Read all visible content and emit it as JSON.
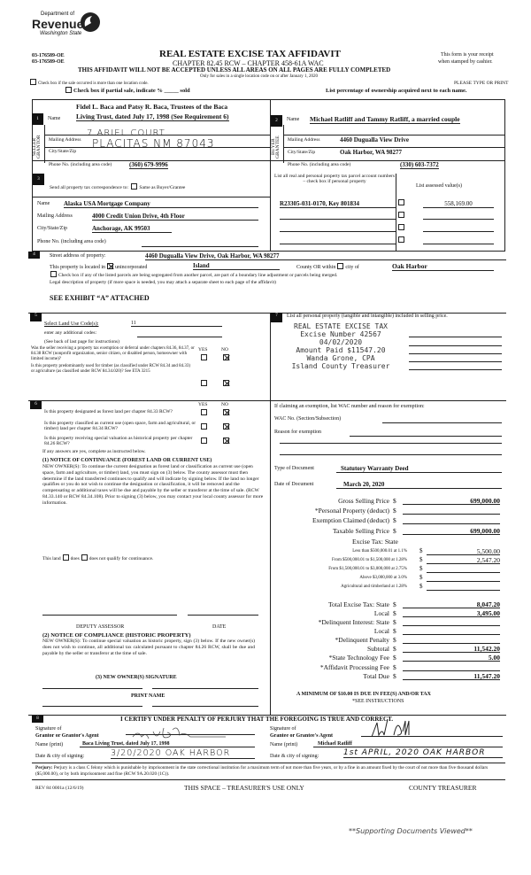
{
  "header": {
    "logo_line1": "Department of",
    "logo_line2": "Revenue",
    "logo_line3": "Washington State",
    "ids": [
      "03-176589-OE",
      "03-176589-OE"
    ],
    "title": "REAL ESTATE EXCISE TAX AFFIDAVIT",
    "chapter": "CHAPTER 82.45 RCW – CHAPTER 458-61A WAC",
    "receipt1": "This form is your receipt",
    "receipt2": "when stamped by cashier.",
    "warning": "THIS AFFIDAVIT WILL NOT BE ACCEPTED UNLESS ALL AREAS ON ALL PAGES ARE FULLY COMPLETED",
    "only_sales": "Only for sales in a single location code on or after January 1, 2020",
    "multi_location": "Check box if the sale occurred is more than one location code.",
    "type_print": "PLEASE TYPE OR PRINT",
    "partial_sale": "Check box if partial sale, indicate % _____ sold",
    "list_pct": "List percentage of ownership acquired next to each name."
  },
  "seller": {
    "num": "1",
    "side": "SELLER GRANTOR",
    "name_label": "Name",
    "name_line1": "Fidel L. Baca and Patsy R. Baca, Trustees of the Baca",
    "name_line2": "Living Trust, dated July 17, 1998 (See Requirement 6)",
    "mail_label": "Mailing Address",
    "mail": "7 ARIEL COURT",
    "city_label": "City/State/Zip",
    "city": "PLACITAS NM 87043",
    "phone_label": "Phone No. (including area code)",
    "phone": "(360) 679-9996"
  },
  "buyer": {
    "num": "2",
    "side": "BUYER GRANTEE",
    "name_label": "Name",
    "name": "Michael Ratliff and Tammy Ratliff, a married couple",
    "mail_label": "Mailing Address",
    "mail": "4460 Dugualla View Drive",
    "city_label": "City/State/Zip",
    "city": "Oak Harbor, WA 98277",
    "phone_label": "Phone No. (including area code)",
    "phone": "(330) 603-7372"
  },
  "section3": {
    "num": "3",
    "send_label": "Send all property tax correspondence to:",
    "same_label": "Same as Buyer/Grantee",
    "name_label": "Name",
    "name": "Alaska USA Mortgage Company",
    "mail_label": "Mailing Address",
    "mail": "4000 Credit Union Drive, 4th Floor",
    "city_label": "City/State/Zip",
    "city": "Anchorage, AK 99503",
    "phone_label": "Phone No. (including area code)",
    "parcel_header": "List all real and personal property tax parcel account numbers – check box if personal property",
    "assessed_header": "List assessed value(s)",
    "parcel": "R23305-031-0170, Key 801834",
    "assessed": "558,169.00"
  },
  "section4": {
    "num": "4",
    "street_label": "Street address of property:",
    "street": "4460 Dugualla View Drive, Oak Harbor, WA  98277",
    "located_label": "This property is located in",
    "unincorporated": "unincorporated",
    "county": "Island",
    "county_or": "County OR within",
    "city_of": "city of",
    "city": "Oak Harbor",
    "segregated": "Check box if any of the listed parcels are being segregated from another parcel, are part of a boundary line adjustment or parcels being merged.",
    "legal": "Legal description of property (if more space is needed, you may attach a separate sheet to each page of the affidavit)",
    "exhibit": "SEE EXHIBIT “A” ATTACHED"
  },
  "section5": {
    "num": "5",
    "land_use_label": "Select Land Use Code(s):",
    "land_use": "11",
    "additional": "enter any additional codes:",
    "see_back": "(See back of last page for instructions)",
    "yes": "YES",
    "no": "NO",
    "q1": "Was the seller receiving a property tax exemption or deferral under chapters 84.36, 84.37, or 84.38 RCW (nonprofit organization, senior citizen, or disabled person, homeowner with limited income)?",
    "q2": "Is this property predominantly used for timber (as classified under RCW 84.34 and 84.33) or agriculture (as classified under RCW 84.34.020)? See ETA 3215"
  },
  "section6": {
    "num": "6",
    "yes": "YES",
    "no": "NO",
    "q1": "Is this property designated as forest land per chapter 84.33 RCW?",
    "q2": "Is this property classified as current use (open space, farm and agricultural, or timber) land per chapter 84.34 RCW?",
    "q3": "Is this property receiving special valuation as historical property per chapter 84.26 RCW?",
    "if_yes": "If any answers are yes, complete as instructed below.",
    "notice1_title": "(1) NOTICE OF CONTINUANCE (FOREST LAND OR CURRENT USE)",
    "notice1_body": "NEW OWNER(S): To continue the current designation as forest land or classification as current use (open space, farm and agriculture, or timber) land, you must sign on (3) below. The county assessor must then determine if the land transferred continues to qualify and will indicate by signing below. If the land no longer qualifies or you do not wish to continue the designation or classification, it will be removed and the compensating or additional taxes will be due and payable by the seller or transferor at the time of sale. (RCW 84.33.140 or RCW 84.34.108). Prior to signing (3) below, you may contact your local county assessor for more information.",
    "this_land": "This land",
    "does": "does",
    "does_not": "does not qualify for continuance.",
    "deputy": "DEPUTY ASSESSOR",
    "date": "DATE",
    "notice2_title": "(2) NOTICE OF COMPLIANCE (HISTORIC PROPERTY)",
    "notice2_body": "NEW OWNER(S): To continue special valuation as historic property, sign (3) below. If the new owner(s) does not wish to continue, all additional tax calculated pursuant to chapter 84.26 RCW, shall be due and payable by the seller or transferor at the time of sale.",
    "new_owner_sig": "(3) NEW OWNER(S) SIGNATURE",
    "print_name": "PRINT NAME"
  },
  "section7": {
    "num": "7",
    "personal_property": "List all personal property (tangible and intangible) included in selling price.",
    "stamp": [
      "REAL ESTATE EXCISE TAX",
      "Excise Number 42567",
      "04/02/2020",
      "Amount Paid $11547.20",
      "Wanda Grone, CPA",
      "Island County Treasurer"
    ],
    "exemption_label": "If claiming an exemption, list WAC number and reason for exemption:",
    "wac_label": "WAC No. (Section/Subsection)",
    "reason_label": "Reason for exemption",
    "doc_type_label": "Type of Document",
    "doc_type": "Statutory Warranty Deed",
    "doc_date_label": "Date of Document",
    "doc_date": "March 20, 2020",
    "excise_state": "Excise Tax:  State",
    "rows": [
      {
        "label": "Gross Selling Price",
        "value": "699,000.00"
      },
      {
        "label": "*Personal Property (deduct)",
        "value": ""
      },
      {
        "label": "Exemption Claimed (deduct)",
        "value": ""
      },
      {
        "label": "Taxable Selling Price",
        "value": "699,000.00"
      }
    ],
    "rate_rows": [
      {
        "label": "Less than $500,000.01 at 1.1%",
        "value": "5,500.00"
      },
      {
        "label": "From $500,000.01 to $1,500,000 at 1.28%",
        "value": "2,547.20"
      },
      {
        "label": "From $1,500,000.01 to $3,000,000 at 2.75%",
        "value": ""
      },
      {
        "label": "Above $3,000,000 at 3.0%",
        "value": ""
      },
      {
        "label": "Agricultural and timberland at 1.28%",
        "value": ""
      }
    ],
    "total_rows": [
      {
        "label": "Total Excise Tax: State",
        "value": "8,047.20"
      },
      {
        "label": "Local",
        "value": "3,495.00"
      },
      {
        "label": "*Delinquent Interest: State",
        "value": ""
      },
      {
        "label": "Local",
        "value": ""
      },
      {
        "label": "*Delinquent Penalty",
        "value": ""
      },
      {
        "label": "Subtotal",
        "value": "11,542.20"
      },
      {
        "label": "*State Technology Fee",
        "value": "5.00"
      },
      {
        "label": "*Affidavit Processing Fee",
        "value": ""
      },
      {
        "label": "Total Due",
        "value": "11,547.20"
      }
    ],
    "currency": "$",
    "minimum": "A MINIMUM OF $10.00 IS DUE IN FEE(S) AND/OR TAX",
    "see_instructions": "*SEE INSTRUCTIONS"
  },
  "section8": {
    "num": "8",
    "certify": "I CERTIFY UNDER PENALTY OF PERJURY THAT THE FOREGOING IS TRUE AND CORRECT.",
    "sig_of": "Signature of",
    "grantor_agent": "Grantor or Grantor's Agent",
    "grantee_agent": "Grantee or Grantee's Agent",
    "name_print": "Name (print)",
    "grantor_name": "Baca Living Trust, dated July 17, 1998",
    "grantee_name": "Michael  Ratliff",
    "date_city": "Date & city of signing:",
    "grantor_date": "3/20/2020  OAK HARBOR",
    "grantee_date": "1st APRIL, 2020     OAK HARBOR",
    "perjury_label": "Perjury:",
    "perjury": "Perjury is a class C felony which is punishable by imprisonment in the state correctional institution for a maximum term of not more than five years, or by a fine in an amount fixed by the court of not more than five thousand dollars ($5,000.00), or by both imprisonment and fine (RCW 9A.20.020 (1C))."
  },
  "footer": {
    "rev": "REV 84 0001a (12/6/19)",
    "treasurer_use": "THIS SPACE – TREASURER'S USE ONLY",
    "county_treasurer": "COUNTY TREASURER",
    "supporting": "**Supporting Documents Viewed**"
  }
}
